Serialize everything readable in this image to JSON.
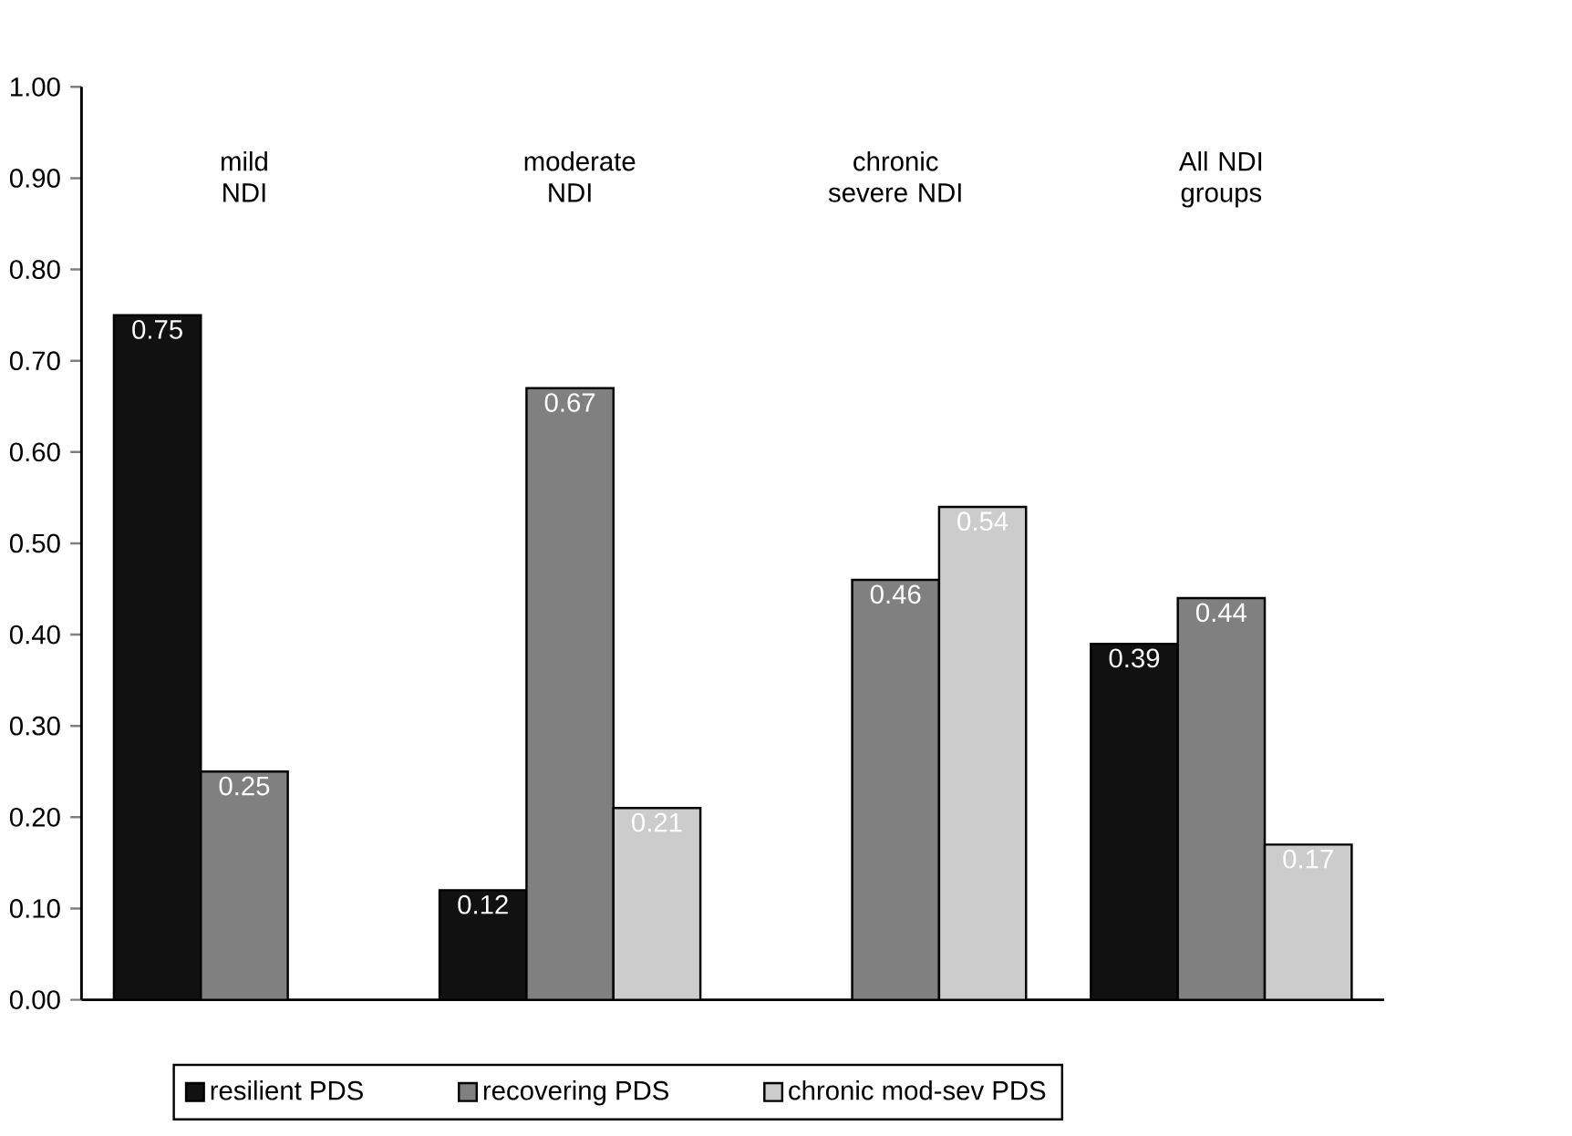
{
  "chart_data": {
    "type": "bar",
    "categories": [
      "mild NDI",
      "moderate NDI",
      "chronic severe NDI",
      "All NDI groups"
    ],
    "series": [
      {
        "name": "resilient PDS",
        "color": "#111111",
        "values": [
          0.75,
          0.12,
          null,
          0.39
        ]
      },
      {
        "name": "recovering PDS",
        "color": "#808080",
        "values": [
          0.25,
          0.67,
          0.46,
          0.44
        ]
      },
      {
        "name": "chronic mod-sev PDS",
        "color": "#cccccc",
        "values": [
          null,
          0.21,
          0.54,
          0.17
        ]
      }
    ],
    "ylim": [
      0,
      1
    ],
    "yticks": [
      {
        "value": 0,
        "label": "0.00"
      },
      {
        "value": 0.1,
        "label": "0.10"
      },
      {
        "value": 0.2,
        "label": "0.20"
      },
      {
        "value": 0.3,
        "label": "0.30"
      },
      {
        "value": 0.4,
        "label": "0.40"
      },
      {
        "value": 0.5,
        "label": "0.50"
      },
      {
        "value": 0.6,
        "label": "0.60"
      },
      {
        "value": 0.7,
        "label": "0.70"
      },
      {
        "value": 0.8,
        "label": "0.80"
      },
      {
        "value": 0.9,
        "label": "0.90"
      },
      {
        "value": 1,
        "label": "1.00"
      }
    ],
    "data_labels": true,
    "legend": "bottom",
    "grid": false
  }
}
